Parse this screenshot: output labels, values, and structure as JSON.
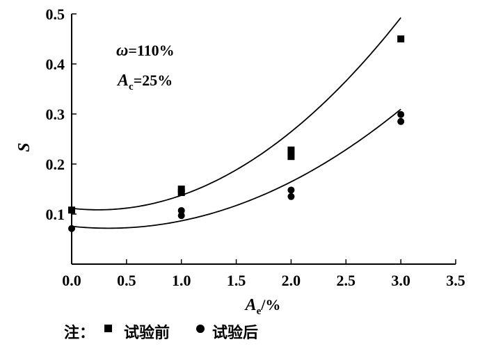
{
  "chart_data": {
    "type": "scatter",
    "xlabel_main": "A",
    "xlabel_sub": "e",
    "xlabel_unit": "/%",
    "ylabel": "S",
    "xlim": [
      0,
      3.5
    ],
    "ylim": [
      0,
      0.5
    ],
    "xticks": [
      "0.0",
      "0.5",
      "1.0",
      "1.5",
      "2.0",
      "2.5",
      "3.0",
      "3.5"
    ],
    "yticks": [
      "0.1",
      "0.2",
      "0.3",
      "0.4",
      "0.5"
    ],
    "xtick_values": [
      0,
      0.5,
      1.0,
      1.5,
      2.0,
      2.5,
      3.0,
      3.5
    ],
    "ytick_values": [
      0.1,
      0.2,
      0.3,
      0.4,
      0.5
    ],
    "annotations": {
      "omega_symbol": "ω",
      "omega_value": "=110%",
      "ac_main": "A",
      "ac_sub": "c",
      "ac_value": "=25%"
    },
    "series": [
      {
        "name": "试验前",
        "marker": "square",
        "points": [
          [
            0.0,
            0.108
          ],
          [
            1.0,
            0.143
          ],
          [
            1.0,
            0.15
          ],
          [
            2.0,
            0.215
          ],
          [
            2.0,
            0.228
          ],
          [
            3.0,
            0.45
          ]
        ],
        "fit": {
          "a": 0.0505,
          "b": -0.0245,
          "c": 0.1115
        }
      },
      {
        "name": "试验后",
        "marker": "circle",
        "points": [
          [
            0.0,
            0.071
          ],
          [
            1.0,
            0.097
          ],
          [
            1.0,
            0.107
          ],
          [
            2.0,
            0.135
          ],
          [
            2.0,
            0.148
          ],
          [
            3.0,
            0.285
          ],
          [
            3.0,
            0.299
          ]
        ],
        "fit": {
          "a": 0.0335,
          "b": -0.0225,
          "c": 0.0755
        }
      }
    ],
    "legend": {
      "prefix": "注：",
      "items": [
        "试验前",
        "试验后"
      ]
    }
  }
}
